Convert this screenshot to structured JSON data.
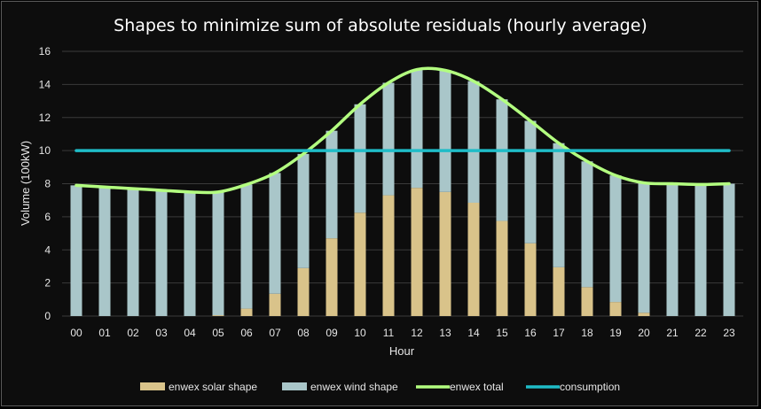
{
  "chart_data": {
    "type": "bar",
    "title": "Shapes to minimize sum of absolute residuals (hourly average)",
    "xlabel": "Hour",
    "ylabel": "Volume (100kW)",
    "ylim": [
      0,
      16
    ],
    "yticks": [
      0,
      2,
      4,
      6,
      8,
      10,
      12,
      14,
      16
    ],
    "grid": true,
    "legend_position": "bottom",
    "categories": [
      "00",
      "01",
      "02",
      "03",
      "04",
      "05",
      "06",
      "07",
      "08",
      "09",
      "10",
      "11",
      "12",
      "13",
      "14",
      "15",
      "16",
      "17",
      "18",
      "19",
      "20",
      "21",
      "22",
      "23"
    ],
    "series": [
      {
        "name": "enwex solar shape",
        "type": "bar",
        "stacked": true,
        "color": "#d9c38a",
        "values": [
          0,
          0,
          0,
          0,
          0,
          0.05,
          0.45,
          1.35,
          2.9,
          4.7,
          6.25,
          7.3,
          7.75,
          7.5,
          6.85,
          5.75,
          4.4,
          2.95,
          1.75,
          0.85,
          0.2,
          0,
          0,
          0
        ]
      },
      {
        "name": "enwex wind shape",
        "type": "bar",
        "stacked": true,
        "color": "#a9c6c9",
        "values": [
          7.9,
          7.8,
          7.7,
          7.6,
          7.5,
          7.45,
          7.5,
          7.3,
          6.9,
          6.5,
          6.55,
          6.8,
          7.15,
          7.35,
          7.35,
          7.35,
          7.4,
          7.5,
          7.6,
          7.65,
          7.85,
          8.0,
          7.95,
          8.0
        ]
      },
      {
        "name": "enwex total",
        "type": "line",
        "color": "#b3ff80",
        "values": [
          7.9,
          7.8,
          7.7,
          7.6,
          7.5,
          7.5,
          7.95,
          8.65,
          9.8,
          11.2,
          12.8,
          14.1,
          14.9,
          14.85,
          14.2,
          13.1,
          11.8,
          10.45,
          9.35,
          8.5,
          8.05,
          8.0,
          7.95,
          8.0
        ]
      },
      {
        "name": "consumption",
        "type": "line",
        "color": "#1fbcc7",
        "values": [
          10,
          10,
          10,
          10,
          10,
          10,
          10,
          10,
          10,
          10,
          10,
          10,
          10,
          10,
          10,
          10,
          10,
          10,
          10,
          10,
          10,
          10,
          10,
          10
        ]
      }
    ]
  }
}
